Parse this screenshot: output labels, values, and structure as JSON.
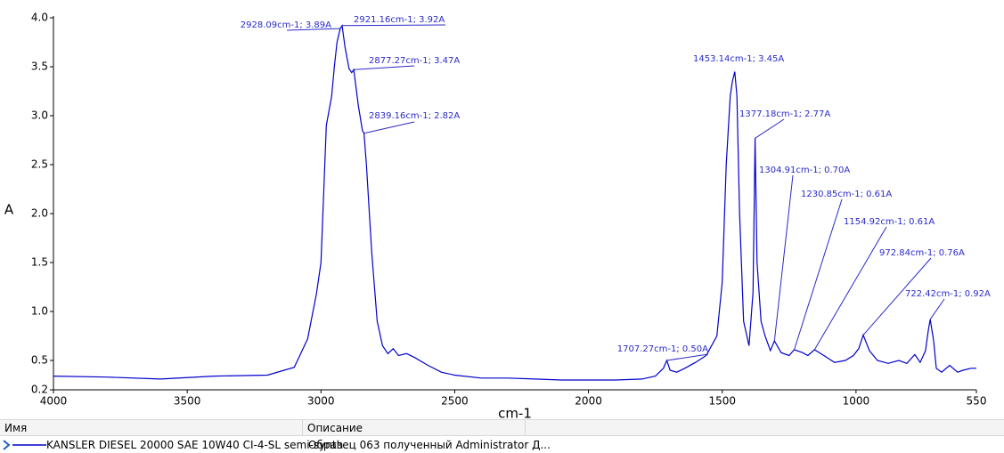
{
  "chart_data": {
    "type": "line",
    "xlabel": "cm-1",
    "ylabel": "A",
    "xlim": [
      4000,
      550
    ],
    "xticks": [
      4000,
      3500,
      3000,
      2500,
      2000,
      1500,
      1000,
      550
    ],
    "ylim": [
      0.2,
      4.0
    ],
    "yticks": [
      0.2,
      0.5,
      {
        "value": 1,
        "label": "1.0"
      },
      1.5,
      {
        "value": 2,
        "label": "2.0"
      },
      2.5,
      {
        "value": 3,
        "label": "3.0"
      },
      3.5,
      {
        "value": 4,
        "label": "4.0"
      }
    ],
    "series": [
      {
        "name": "KANSLER DIESEL 20000 SAE 10W40 CI-4-SL semi-synth",
        "color": "#0000cc",
        "x": [
          4000,
          3800,
          3600,
          3400,
          3200,
          3100,
          3050,
          3017,
          3000,
          2980,
          2960,
          2950,
          2940,
          2928.09,
          2921.16,
          2910,
          2895,
          2885,
          2877.27,
          2860,
          2845,
          2839.16,
          2830,
          2810,
          2790,
          2770,
          2750,
          2730,
          2710,
          2680,
          2650,
          2600,
          2550,
          2500,
          2400,
          2300,
          2200,
          2100,
          2000,
          1900,
          1800,
          1750,
          1720,
          1707.27,
          1695,
          1670,
          1640,
          1600,
          1560,
          1520,
          1500,
          1485,
          1470,
          1462,
          1453.14,
          1445,
          1435,
          1420,
          1400,
          1385,
          1377.18,
          1370,
          1355,
          1340,
          1320,
          1304.91,
          1280,
          1250,
          1230.85,
          1200,
          1180,
          1154.92,
          1120,
          1080,
          1040,
          1010,
          990,
          972.84,
          950,
          920,
          880,
          840,
          810,
          780,
          760,
          740,
          730,
          722.42,
          710,
          700,
          680,
          650,
          620,
          600,
          570,
          550
        ],
        "values": [
          0.34,
          0.33,
          0.31,
          0.34,
          0.35,
          0.43,
          0.72,
          1.18,
          1.5,
          2.9,
          3.2,
          3.5,
          3.75,
          3.89,
          3.92,
          3.7,
          3.48,
          3.44,
          3.47,
          3.1,
          2.85,
          2.82,
          2.5,
          1.6,
          0.9,
          0.65,
          0.57,
          0.62,
          0.55,
          0.57,
          0.53,
          0.45,
          0.38,
          0.35,
          0.32,
          0.32,
          0.31,
          0.3,
          0.3,
          0.3,
          0.31,
          0.34,
          0.42,
          0.5,
          0.4,
          0.38,
          0.42,
          0.48,
          0.55,
          0.75,
          1.3,
          2.5,
          3.2,
          3.35,
          3.45,
          3.2,
          2.0,
          0.9,
          0.65,
          1.2,
          2.77,
          1.5,
          0.9,
          0.75,
          0.6,
          0.7,
          0.58,
          0.55,
          0.61,
          0.58,
          0.55,
          0.61,
          0.55,
          0.48,
          0.5,
          0.55,
          0.62,
          0.76,
          0.6,
          0.5,
          0.47,
          0.5,
          0.47,
          0.56,
          0.48,
          0.6,
          0.8,
          0.92,
          0.7,
          0.42,
          0.38,
          0.45,
          0.38,
          0.4,
          0.42,
          0.42
        ]
      }
    ],
    "annotations": [
      {
        "label": "2928.09cm-1; 3.89A",
        "x": 2928.09,
        "y": 3.89
      },
      {
        "label": "2921.16cm-1; 3.92A",
        "x": 2921.16,
        "y": 3.92
      },
      {
        "label": "2877.27cm-1; 3.47A",
        "x": 2877.27,
        "y": 3.47
      },
      {
        "label": "2839.16cm-1; 2.82A",
        "x": 2839.16,
        "y": 2.82
      },
      {
        "label": "1707.27cm-1; 0.50A",
        "x": 1707.27,
        "y": 0.5
      },
      {
        "label": "1453.14cm-1; 3.45A",
        "x": 1453.14,
        "y": 3.45
      },
      {
        "label": "1377.18cm-1; 2.77A",
        "x": 1377.18,
        "y": 2.77
      },
      {
        "label": "1304.91cm-1; 0.70A",
        "x": 1304.91,
        "y": 0.7
      },
      {
        "label": "1230.85cm-1; 0.61A",
        "x": 1230.85,
        "y": 0.61
      },
      {
        "label": "1154.92cm-1; 0.61A",
        "x": 1154.92,
        "y": 0.61
      },
      {
        "label": "972.84cm-1; 0.76A",
        "x": 972.84,
        "y": 0.76
      },
      {
        "label": "722.42cm-1; 0.92A",
        "x": 722.42,
        "y": 0.92
      }
    ]
  },
  "table": {
    "headers": [
      "Имя",
      "Описание"
    ],
    "description": "Образец 063 полученный Administrator Д..."
  }
}
